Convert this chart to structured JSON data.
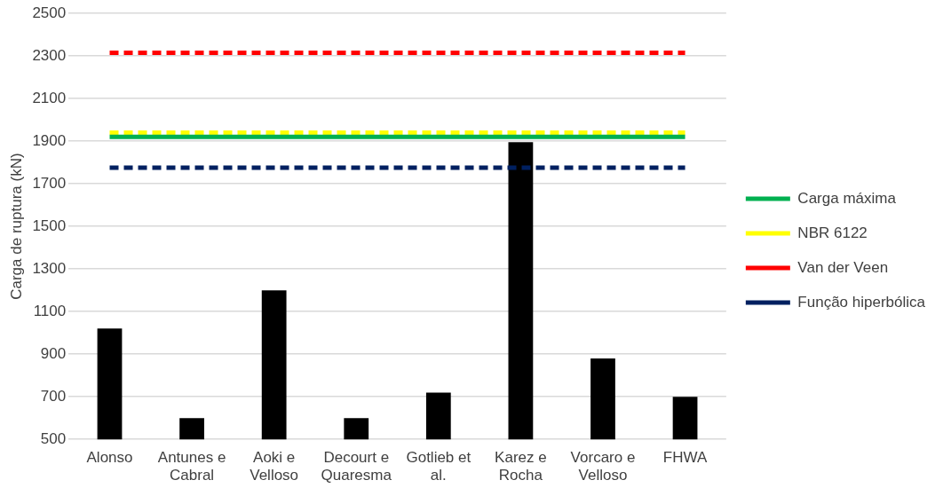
{
  "chart_data": {
    "type": "bar",
    "ylabel": "Carga de ruptura (kN)",
    "categories": [
      "Alonso",
      "Antunes e Cabral",
      "Aoki e Velloso",
      "Decourt e Quaresma",
      "Gotlieb et al.",
      "Karez e Rocha",
      "Vorcaro e Velloso",
      "FHWA"
    ],
    "series": [
      {
        "color": "#000000",
        "values": [
          1020,
          600,
          1200,
          600,
          720,
          1895,
          880,
          700
        ]
      },
      {
        "name": "Carga máxima",
        "type": "line",
        "color": "#00b050",
        "line_style": "solid",
        "values": [
          1920,
          1920,
          1920,
          1920,
          1920,
          1920,
          1920,
          1920
        ]
      },
      {
        "name": "NBR 6122",
        "type": "line",
        "color": "#ffff00",
        "line_style": "dashed",
        "values": [
          1940,
          1940,
          1940,
          1940,
          1940,
          1940,
          1940,
          1940
        ]
      },
      {
        "name": "Van der Veen",
        "type": "line",
        "color": "#ff0000",
        "line_style": "dashed",
        "values": [
          2315,
          2315,
          2315,
          2315,
          2315,
          2315,
          2315,
          2315
        ]
      },
      {
        "name": "Função hiperbólica",
        "type": "line",
        "color": "#002060",
        "line_style": "dashed",
        "values": [
          1775,
          1775,
          1775,
          1775,
          1775,
          1775,
          1775,
          1775
        ]
      }
    ],
    "ylim": [
      500,
      2500
    ],
    "yticks": [
      500,
      700,
      900,
      1100,
      1300,
      1500,
      1700,
      1900,
      2100,
      2300,
      2500
    ],
    "grid": "y",
    "legend": "right",
    "marker": "none"
  }
}
